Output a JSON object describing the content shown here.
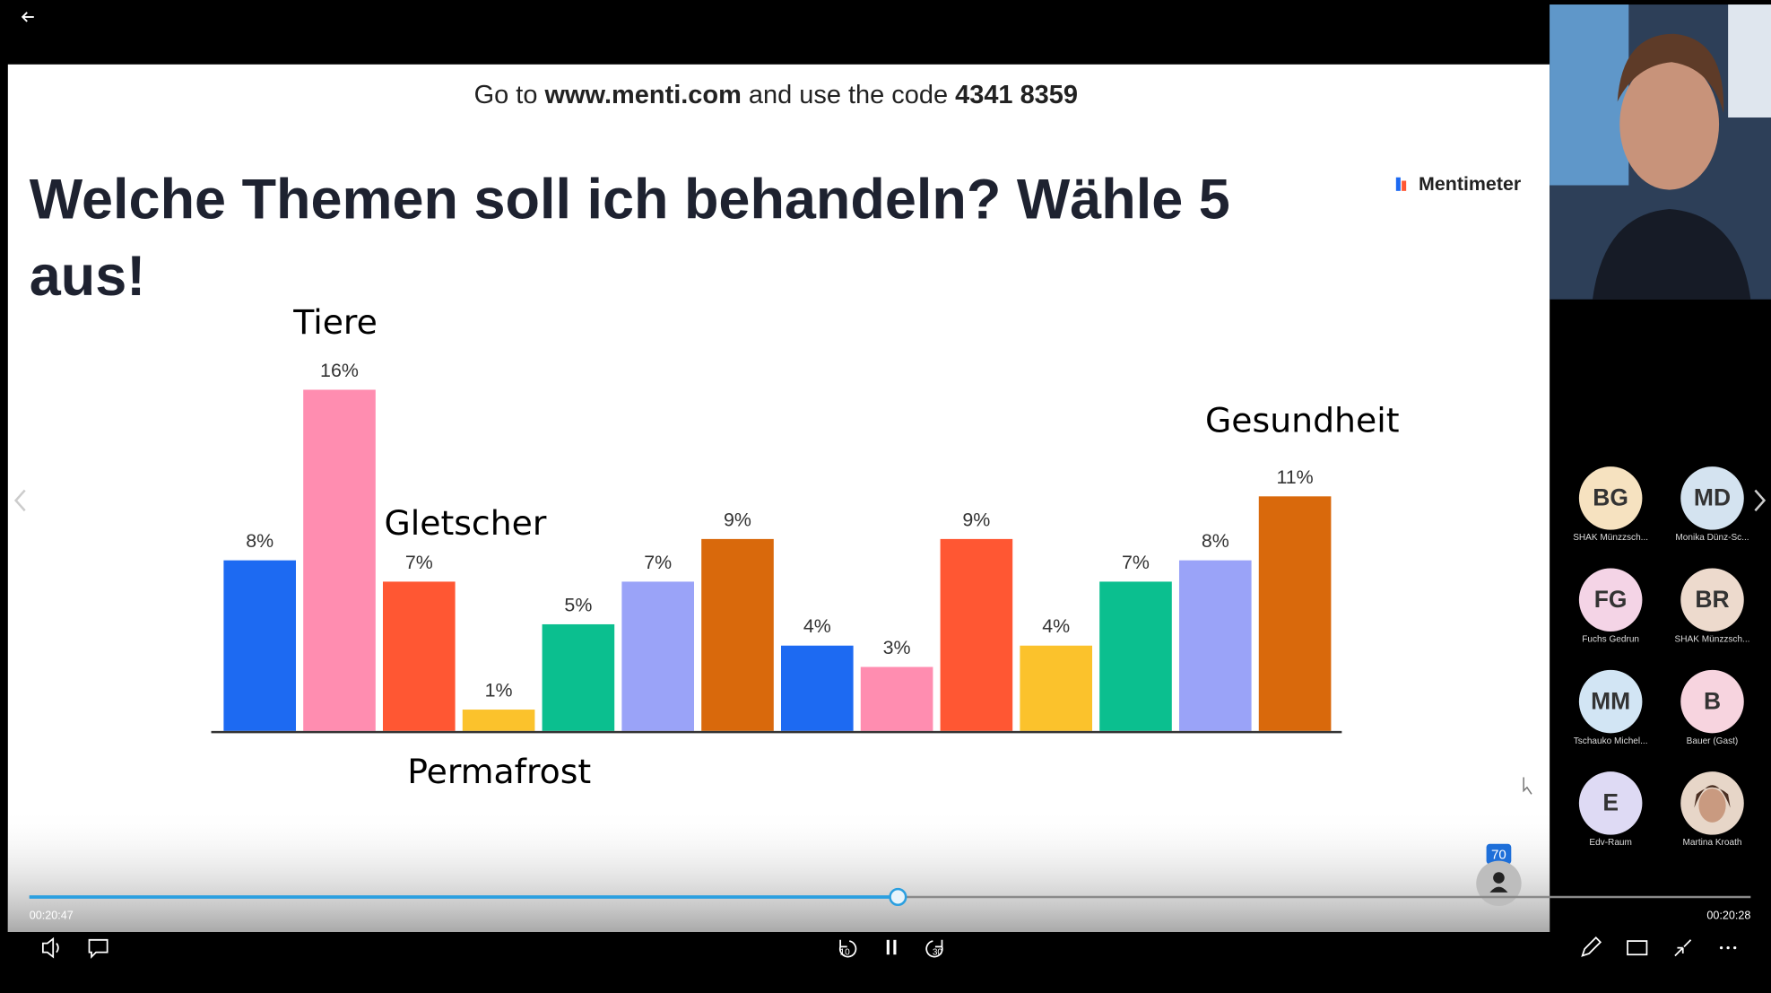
{
  "slide": {
    "instruction": [
      "Go to ",
      "www.menti.com",
      " and use the code ",
      "4341 8359"
    ],
    "brand": "Mentimeter"
  },
  "chart_data": {
    "type": "bar",
    "title": [
      "Welche Themen soll ich behandeln? Wähle 5",
      "aus!"
    ],
    "categories": [
      null,
      null,
      null,
      null,
      null,
      null,
      null,
      null,
      null,
      null,
      null,
      null,
      null,
      null
    ],
    "values": [
      8,
      16,
      7,
      1,
      5,
      7,
      9,
      4,
      3,
      9,
      4,
      7,
      8,
      11
    ],
    "value_labels": [
      "8%",
      "16%",
      "7%",
      "1%",
      "5%",
      "7%",
      "9%",
      "4%",
      "3%",
      "9%",
      "4%",
      "7%",
      "8%",
      "11%"
    ],
    "colors": [
      "#1d6af2",
      "#ff8db0",
      "#ff5733",
      "#fbc22c",
      "#0bbf8f",
      "#9aa3f8",
      "#d9690c",
      "#1d6af2",
      "#ff8db0",
      "#ff5733",
      "#fbc22c",
      "#0bbf8f",
      "#9aa3f8",
      "#d9690c"
    ],
    "ylim": [
      0,
      16
    ],
    "annotations": [
      "Tiere",
      "Gletscher",
      "Permafrost",
      "Gesundheit"
    ]
  },
  "participants": [
    {
      "initials": "BG",
      "name": "SHAK Münzzsch..."
    },
    {
      "initials": "MD",
      "name": "Monika Dünz-Sc..."
    },
    {
      "initials": "FG",
      "name": "Fuchs Gedrun"
    },
    {
      "initials": "BR",
      "name": "SHAK Münzzsch..."
    },
    {
      "initials": "MM",
      "name": "Tschauko Michel..."
    },
    {
      "initials": "B",
      "name": "Bauer (Gast)"
    },
    {
      "initials": "E",
      "name": "Edv-Raum"
    },
    {
      "initials": null,
      "name": "Martina Kroath"
    }
  ],
  "player": {
    "badge": "70",
    "time_elapsed": "00:20:47",
    "time_remaining": "00:20:28",
    "skip_back": "10",
    "skip_forward": "30"
  }
}
